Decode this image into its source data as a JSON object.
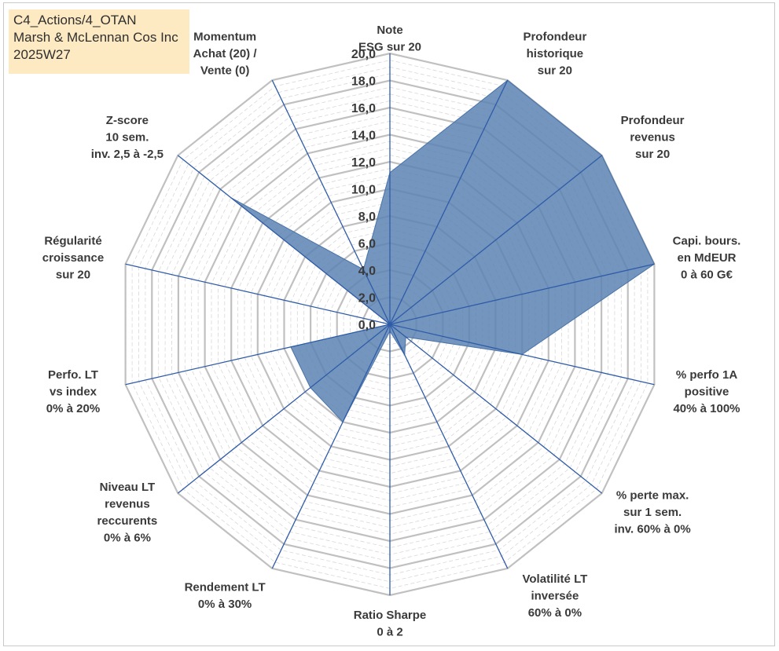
{
  "info_box": {
    "line1": "C4_Actions/4_OTAN",
    "line2": "Marsh & McLennan Cos Inc",
    "line3": "2025W27"
  },
  "colors": {
    "fill": "#5b82b3",
    "spokes": "#2f5ca8",
    "grid_major": "#c0c0c0",
    "grid_minor": "#d8d8d8",
    "text": "#3a3a3a",
    "info_bg": "#fde9c2"
  },
  "chart_data": {
    "type": "radar",
    "title": "",
    "rlim": [
      0,
      20
    ],
    "ticks": [
      "0,0",
      "2,0",
      "4,0",
      "6,0",
      "8,0",
      "10,0",
      "12,0",
      "14,0",
      "16,0",
      "18,0",
      "20,0"
    ],
    "grid": true,
    "categories": [
      [
        "Note",
        "ESG sur 20"
      ],
      [
        "Profondeur",
        "historique",
        "sur 20"
      ],
      [
        "Profondeur",
        "revenus",
        "sur 20"
      ],
      [
        "Capi. bours.",
        "en MdEUR",
        "0 à 60 G€"
      ],
      [
        "% perfo 1A",
        "positive",
        "40% à 100%"
      ],
      [
        "% perte max.",
        "sur 1 sem.",
        "inv. 60% à 0%"
      ],
      [
        "Volatilité LT",
        "inversée",
        "60% à 0%"
      ],
      [
        "Ratio Sharpe",
        "0 à 2"
      ],
      [
        "Rendement LT",
        "0% à 30%"
      ],
      [
        "Niveau LT",
        "revenus",
        "reccurents",
        "0% à 6%"
      ],
      [
        "Perfo. LT",
        "vs index",
        "0% à 20%"
      ],
      [
        "Régularité",
        "croissance",
        "sur 20"
      ],
      [
        "Z-score",
        "10 sem.",
        "inv. 2,5 à -2,5"
      ],
      [
        "Momentum",
        "Achat (20) /",
        "Vente (0)"
      ]
    ],
    "series": [
      {
        "values": [
          11.2,
          20.0,
          20.0,
          20.0,
          10.0,
          1.5,
          2.5,
          0.5,
          8.0,
          7.5,
          7.5,
          0.0,
          15.0,
          4.5
        ]
      }
    ]
  }
}
